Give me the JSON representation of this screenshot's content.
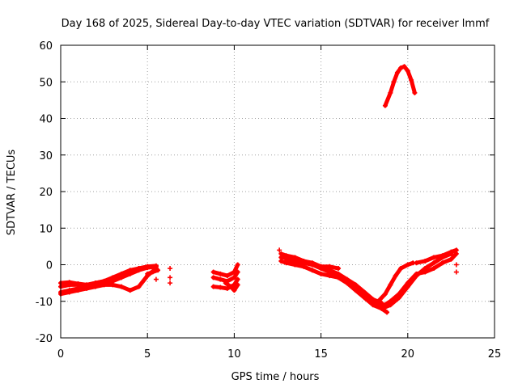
{
  "chart_data": {
    "type": "scatter",
    "title": "Day 168 of 2025, Sidereal Day-to-day VTEC variation (SDTVAR) for receiver lmmf",
    "xlabel": "GPS time / hours",
    "ylabel": "SDTVAR / TECUs",
    "xlim": [
      0,
      25
    ],
    "ylim": [
      -20,
      60
    ],
    "x_ticks": [
      0,
      5,
      10,
      15,
      20,
      25
    ],
    "y_ticks": [
      -20,
      -10,
      0,
      10,
      20,
      30,
      40,
      50,
      60
    ],
    "grid": true,
    "marker": "+",
    "color": "#ff0000",
    "series": [
      {
        "name": "SDTVAR",
        "segments": [
          {
            "x": [
              0.0,
              0.5,
              1.0,
              1.5,
              2.0,
              2.5,
              3.0,
              3.5,
              4.0,
              4.5,
              5.0,
              5.5
            ],
            "y": [
              -7.5,
              -7.0,
              -6.5,
              -6.0,
              -5.5,
              -5.0,
              -4.5,
              -3.5,
              -2.5,
              -1.5,
              -0.8,
              -0.5
            ]
          },
          {
            "x": [
              0.0,
              0.5,
              1.0,
              1.5,
              2.0,
              2.5,
              3.0,
              3.5,
              4.0,
              4.5,
              5.0,
              5.5
            ],
            "y": [
              -6.0,
              -5.5,
              -5.5,
              -5.5,
              -5.0,
              -4.5,
              -3.5,
              -2.5,
              -1.5,
              -1.0,
              -0.5,
              -0.3
            ]
          },
          {
            "x": [
              0.0,
              0.5,
              1.0,
              1.5,
              2.0,
              2.5,
              3.0,
              3.5,
              4.0,
              4.5,
              5.0,
              5.5
            ],
            "y": [
              -8.0,
              -7.5,
              -7.0,
              -6.5,
              -6.0,
              -5.5,
              -5.5,
              -6.0,
              -7.0,
              -6.0,
              -3.0,
              -1.0
            ]
          },
          {
            "x": [
              0.0,
              0.5,
              1.0,
              1.5,
              2.0,
              2.5,
              3.0,
              3.5,
              4.0,
              4.5,
              5.0
            ],
            "y": [
              -5.0,
              -4.8,
              -5.2,
              -5.5,
              -5.0,
              -4.5,
              -4.0,
              -3.0,
              -2.0,
              -1.0,
              -0.5
            ]
          },
          {
            "x": [
              5.0,
              5.3,
              5.6
            ],
            "y": [
              -2.5,
              -2.0,
              -1.5
            ]
          },
          {
            "x": [
              8.8,
              9.2,
              9.6,
              10.0,
              10.2
            ],
            "y": [
              -2.0,
              -2.5,
              -3.0,
              -2.0,
              0.0
            ]
          },
          {
            "x": [
              8.8,
              9.2,
              9.6,
              10.0,
              10.2
            ],
            "y": [
              -3.5,
              -4.0,
              -4.5,
              -3.5,
              -2.0
            ]
          },
          {
            "x": [
              8.8,
              9.2,
              9.6,
              10.0,
              10.2
            ],
            "y": [
              -6.0,
              -6.2,
              -6.5,
              -5.5,
              -4.0
            ]
          },
          {
            "x": [
              9.5,
              9.8,
              10.0,
              10.2
            ],
            "y": [
              -5.0,
              -6.0,
              -7.0,
              -5.5
            ]
          },
          {
            "x": [
              12.7,
              13.0,
              13.5,
              14.0,
              14.5,
              15.0,
              15.5,
              16.0,
              16.5,
              17.0,
              17.5,
              18.0,
              18.5
            ],
            "y": [
              2.0,
              2.0,
              1.5,
              1.0,
              0.0,
              -1.0,
              -2.0,
              -3.0,
              -4.5,
              -6.0,
              -8.0,
              -10.0,
              -11.0
            ]
          },
          {
            "x": [
              12.7,
              13.0,
              13.5,
              14.0,
              14.5,
              15.0,
              15.5,
              16.0,
              16.5,
              17.0,
              17.5,
              18.0,
              18.5,
              18.8
            ],
            "y": [
              1.0,
              0.5,
              0.0,
              -0.5,
              -1.5,
              -2.5,
              -3.0,
              -3.5,
              -5.0,
              -7.0,
              -9.0,
              -11.0,
              -12.0,
              -13.0
            ]
          },
          {
            "x": [
              12.7,
              13.0,
              13.5,
              14.0,
              14.5,
              15.0,
              15.5,
              16.0,
              16.5,
              17.0,
              17.5,
              18.0,
              18.5
            ],
            "y": [
              3.0,
              2.5,
              2.0,
              1.0,
              0.5,
              -0.5,
              -1.5,
              -2.5,
              -4.0,
              -5.5,
              -7.5,
              -9.5,
              -10.5
            ]
          },
          {
            "x": [
              13.0,
              13.5,
              14.0,
              14.5,
              15.0,
              15.5,
              16.0
            ],
            "y": [
              1.5,
              1.0,
              0.5,
              0.0,
              -0.5,
              -0.5,
              -1.0
            ]
          },
          {
            "x": [
              18.5,
              19.0,
              19.5,
              20.0,
              20.5,
              21.0,
              21.5,
              22.0,
              22.5
            ],
            "y": [
              -12.0,
              -11.0,
              -9.0,
              -6.0,
              -3.0,
              -1.0,
              0.5,
              2.0,
              3.0
            ]
          },
          {
            "x": [
              18.3,
              18.7,
              19.0,
              19.3,
              19.6,
              20.0,
              20.3
            ],
            "y": [
              -10.0,
              -8.0,
              -5.5,
              -3.0,
              -1.0,
              0.0,
              0.5
            ]
          },
          {
            "x": [
              18.5,
              19.0,
              19.5,
              20.0,
              20.5,
              21.0,
              21.5,
              22.0,
              22.5,
              22.8
            ],
            "y": [
              -11.5,
              -10.0,
              -8.0,
              -5.0,
              -2.5,
              -2.0,
              -1.0,
              0.5,
              1.5,
              3.0
            ]
          },
          {
            "x": [
              20.5,
              21.0,
              21.5,
              22.0,
              22.5,
              22.8
            ],
            "y": [
              0.5,
              1.0,
              2.0,
              2.5,
              3.5,
              4.0
            ]
          },
          {
            "x": [
              18.7,
              19.0,
              19.2,
              19.4,
              19.6,
              19.8,
              20.0,
              20.2,
              20.4
            ],
            "y": [
              43.5,
              47.0,
              50.0,
              52.5,
              53.8,
              54.2,
              53.0,
              50.5,
              47.0
            ]
          }
        ],
        "isolated_points": {
          "x": [
            6.3,
            6.3,
            6.3,
            5.5,
            12.6,
            22.8,
            22.8,
            22.7
          ],
          "y": [
            -1.0,
            -3.5,
            -5.0,
            -4.0,
            4.0,
            0.0,
            -2.0,
            3.5
          ]
        }
      }
    ]
  }
}
